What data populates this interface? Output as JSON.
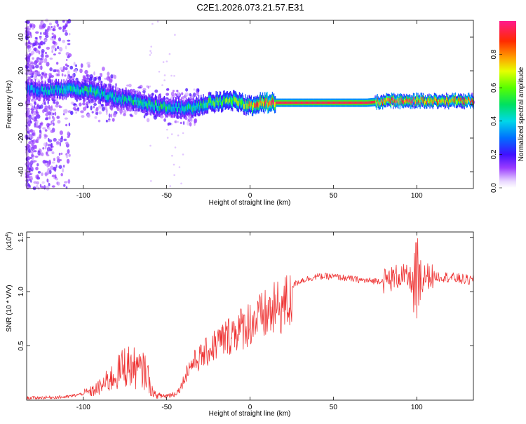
{
  "title": "C2E1.2026.073.21.57.E31",
  "chart_data": [
    {
      "type": "heatmap",
      "name": "spectrogram",
      "xlabel": "Height of straight line (km)",
      "ylabel": "Frequency (Hz)",
      "xlim": [
        -134,
        134
      ],
      "ylim": [
        -50,
        50
      ],
      "xticks": [
        -100,
        -50,
        0,
        50,
        100
      ],
      "yticks": [
        -40,
        -20,
        0,
        20,
        40
      ],
      "colorbar": {
        "label": "Normalized spectral amplitude",
        "range": [
          0.0,
          1.0
        ],
        "ticks": [
          "0.0",
          "0.2",
          "0.4",
          "0.6",
          "0.8"
        ],
        "tick_values": [
          0.0,
          0.2,
          0.4,
          0.6,
          0.8
        ]
      },
      "ridge": {
        "x": [
          -134,
          -125,
          -115,
          -105,
          -95,
          -85,
          -75,
          -65,
          -55,
          -45,
          -35,
          -25,
          -15,
          -8,
          -3,
          0,
          5,
          10,
          15,
          25,
          50,
          70,
          80,
          90,
          100,
          110,
          120,
          134
        ],
        "freq": [
          9,
          8,
          9,
          9,
          8,
          5,
          3,
          1,
          -1,
          -2,
          -2,
          1,
          2,
          2,
          0,
          -1,
          1,
          1,
          1,
          1,
          1,
          1,
          2,
          2,
          2,
          2,
          2,
          2
        ],
        "amplitude": [
          0.35,
          0.4,
          0.45,
          0.5,
          0.5,
          0.45,
          0.45,
          0.5,
          0.5,
          0.45,
          0.5,
          0.55,
          0.6,
          0.7,
          0.7,
          0.75,
          0.85,
          0.95,
          0.95,
          0.95,
          0.95,
          0.95,
          0.9,
          0.9,
          0.9,
          0.85,
          0.85,
          0.85
        ]
      }
    },
    {
      "type": "line",
      "name": "snr",
      "xlabel": "Height of straight line (km)",
      "ylabel": "SNR (10 * V/V)",
      "scale_label": "(x10",
      "scale_exp": "4",
      "scale_close": ")",
      "xlim": [
        -134,
        134
      ],
      "ylim": [
        0,
        1.55
      ],
      "xticks": [
        -100,
        -50,
        0,
        50,
        100
      ],
      "yticks": [
        0.5,
        1.0,
        1.5
      ],
      "ytick_labels": [
        "0.5",
        "1.0",
        "1.5"
      ],
      "color": "#ee3333",
      "series": [
        {
          "name": "SNR",
          "x": [
            -134,
            -110,
            -100,
            -95,
            -90,
            -85,
            -80,
            -75,
            -70,
            -65,
            -62,
            -60,
            -57,
            -55,
            -50,
            -45,
            -42,
            -40,
            -38,
            -35,
            -30,
            -25,
            -20,
            -15,
            -10,
            -5,
            0,
            5,
            10,
            15,
            20,
            25,
            30,
            40,
            50,
            60,
            70,
            80,
            85,
            90,
            95,
            100,
            102,
            105,
            110,
            115,
            120,
            125,
            134
          ],
          "y": [
            0.02,
            0.03,
            0.06,
            0.08,
            0.12,
            0.18,
            0.24,
            0.32,
            0.3,
            0.26,
            0.28,
            0.12,
            0.05,
            0.04,
            0.04,
            0.06,
            0.12,
            0.2,
            0.3,
            0.38,
            0.45,
            0.52,
            0.6,
            0.65,
            0.72,
            0.76,
            0.82,
            0.85,
            0.9,
            0.95,
            1.0,
            1.05,
            1.1,
            1.14,
            1.14,
            1.12,
            1.1,
            1.1,
            1.12,
            1.15,
            1.12,
            1.08,
            1.0,
            1.15,
            1.14,
            1.14,
            1.13,
            1.12,
            1.1
          ]
        }
      ]
    }
  ]
}
